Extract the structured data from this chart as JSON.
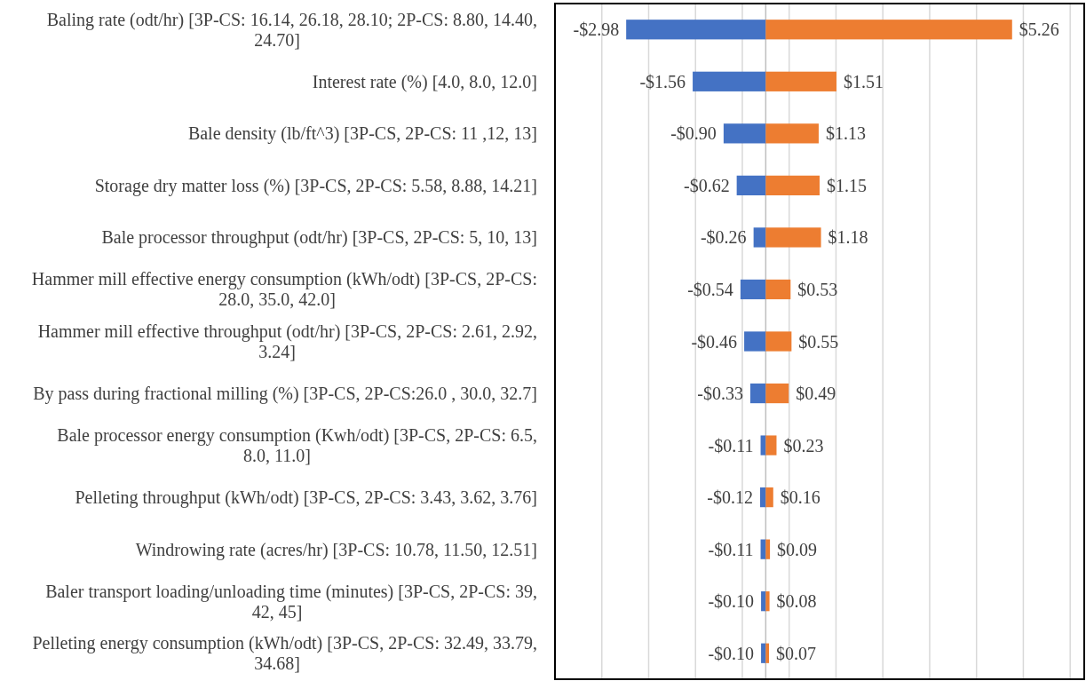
{
  "chart_data": {
    "type": "bar",
    "orientation": "horizontal",
    "stacked": true,
    "categories": [
      "Baling rate (odt/hr) [3P-CS: 16.14, 26.18, 28.10; 2P-CS: 8.80, 14.40, 24.70]",
      "Interest rate (%) [4.0, 8.0, 12.0]",
      "Bale density (lb/ft^3) [3P-CS, 2P-CS: 11 ,12, 13]",
      "Storage dry matter loss (%) [3P-CS, 2P-CS: 5.58, 8.88, 14.21]",
      "Bale processor throughput (odt/hr) [3P-CS, 2P-CS: 5, 10, 13]",
      "Hammer mill effective energy consumption (kWh/odt) [3P-CS, 2P-CS: 28.0, 35.0, 42.0]",
      "Hammer mill effective throughput (odt/hr) [3P-CS, 2P-CS: 2.61, 2.92, 3.24]",
      "By pass during fractional milling (%) [3P-CS, 2P-CS:26.0 , 30.0, 32.7]",
      "Bale processor  energy consumption (Kwh/odt) [3P-CS, 2P-CS: 6.5, 8.0, 11.0]",
      "Pelleting throughput (kWh/odt) [3P-CS, 2P-CS: 3.43, 3.62, 3.76]",
      "Windrowing rate (acres/hr) [3P-CS: 10.78, 11.50, 12.51]",
      "Baler transport loading/unloading time (minutes) [3P-CS, 2P-CS: 39, 42, 45]",
      "Pelleting energy consumption (kWh/odt) [3P-CS, 2P-CS: 32.49, 33.79, 34.68]"
    ],
    "series": [
      {
        "color": "#4472c4",
        "values": [
          -2.98,
          -1.56,
          -0.9,
          -0.62,
          -0.26,
          -0.54,
          -0.46,
          -0.33,
          -0.11,
          -0.12,
          -0.11,
          -0.1,
          -0.1
        ],
        "value_labels": [
          "-$2.98",
          "-$1.56",
          "-$0.90",
          "-$0.62",
          "-$0.26",
          "-$0.54",
          "-$0.46",
          "-$0.33",
          "-$0.11",
          "-$0.12",
          "-$0.11",
          "-$0.10",
          "-$0.10"
        ]
      },
      {
        "color": "#ed7d31",
        "values": [
          5.26,
          1.51,
          1.13,
          1.15,
          1.18,
          0.53,
          0.55,
          0.49,
          0.23,
          0.16,
          0.09,
          0.08,
          0.07
        ],
        "value_labels": [
          "$5.26",
          "$1.51",
          "$1.13",
          "$1.15",
          "$1.18",
          "$0.53",
          "$0.55",
          "$0.49",
          "$0.23",
          "$0.16",
          "$0.09",
          "$0.08",
          "$0.07"
        ]
      }
    ],
    "xlim": [
      -4.5,
      6.8
    ],
    "xticks": [
      {
        "value": -4.5,
        "label": null
      },
      {
        "value": -3.5,
        "label": null
      },
      {
        "value": -2.5,
        "label": null
      },
      {
        "value": -1.5,
        "label": null
      },
      {
        "value": -0.5,
        "label": null
      },
      {
        "value": 0.5,
        "label": null
      },
      {
        "value": 1.5,
        "label": null
      },
      {
        "value": 2.5,
        "label": null
      },
      {
        "value": 3.5,
        "label": null
      },
      {
        "value": 4.5,
        "label": null
      },
      {
        "value": 5.5,
        "label": null
      },
      {
        "value": 6.5,
        "label": null
      }
    ],
    "grid": "x",
    "tick_labels": "y"
  }
}
